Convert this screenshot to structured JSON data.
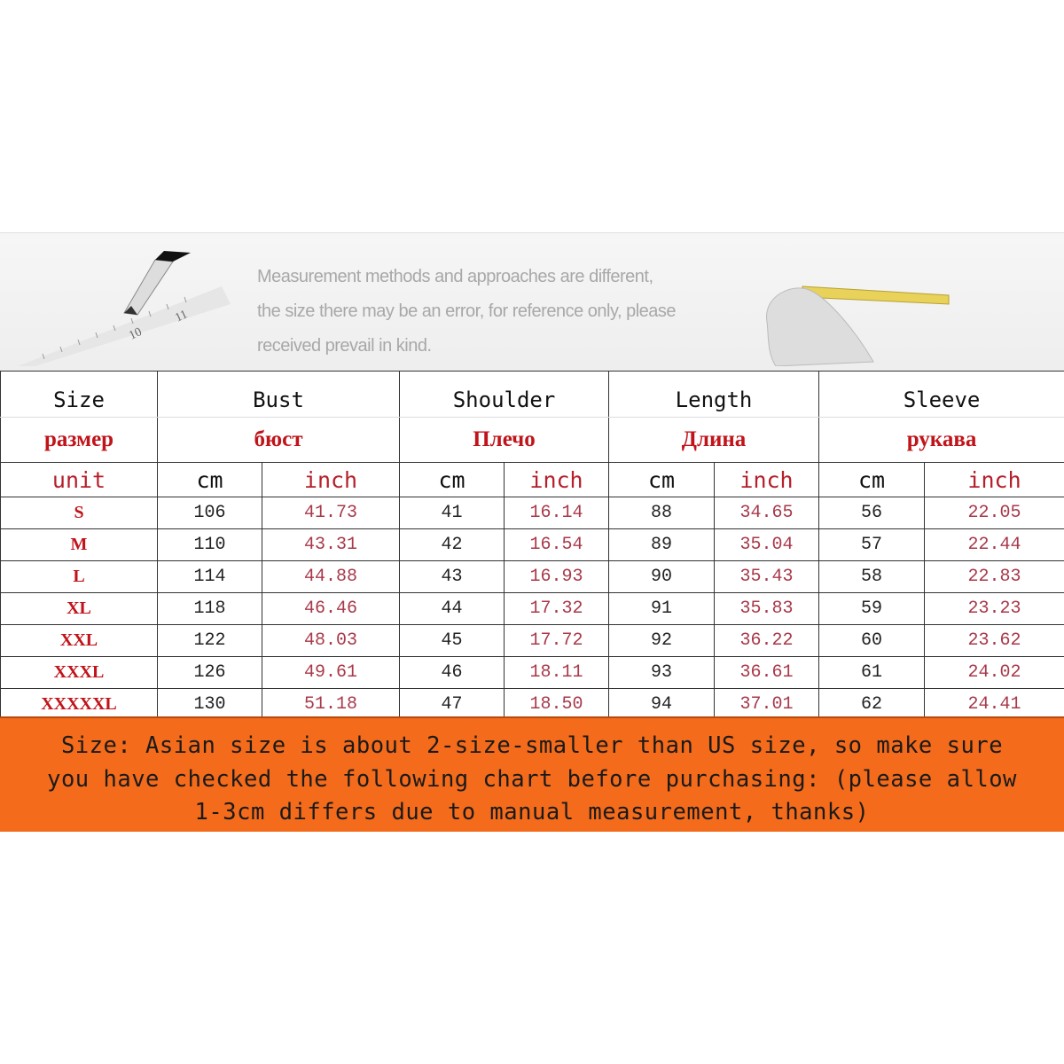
{
  "note": {
    "lines": [
      "Measurement methods and approaches are different,",
      "the size there may be an error, for reference only, please",
      "received prevail in kind."
    ]
  },
  "ruler_marks": [
    "10",
    "11"
  ],
  "table": {
    "headers": [
      {
        "en": "Size",
        "ru": "размер"
      },
      {
        "en": "Bust",
        "ru": "бюст"
      },
      {
        "en": "Shoulder",
        "ru": "Плечо"
      },
      {
        "en": "Length",
        "ru": "Длина"
      },
      {
        "en": "Sleeve",
        "ru": "рукава"
      }
    ],
    "unit_label": "unit",
    "cm_label": "cm",
    "inch_label": "inch",
    "rows": [
      {
        "size": "S",
        "bust_cm": "106",
        "bust_in": "41.73",
        "shoulder_cm": "41",
        "shoulder_in": "16.14",
        "length_cm": "88",
        "length_in": "34.65",
        "sleeve_cm": "56",
        "sleeve_in": "22.05"
      },
      {
        "size": "M",
        "bust_cm": "110",
        "bust_in": "43.31",
        "shoulder_cm": "42",
        "shoulder_in": "16.54",
        "length_cm": "89",
        "length_in": "35.04",
        "sleeve_cm": "57",
        "sleeve_in": "22.44"
      },
      {
        "size": "L",
        "bust_cm": "114",
        "bust_in": "44.88",
        "shoulder_cm": "43",
        "shoulder_in": "16.93",
        "length_cm": "90",
        "length_in": "35.43",
        "sleeve_cm": "58",
        "sleeve_in": "22.83"
      },
      {
        "size": "XL",
        "bust_cm": "118",
        "bust_in": "46.46",
        "shoulder_cm": "44",
        "shoulder_in": "17.32",
        "length_cm": "91",
        "length_in": "35.83",
        "sleeve_cm": "59",
        "sleeve_in": "23.23"
      },
      {
        "size": "XXL",
        "bust_cm": "122",
        "bust_in": "48.03",
        "shoulder_cm": "45",
        "shoulder_in": "17.72",
        "length_cm": "92",
        "length_in": "36.22",
        "sleeve_cm": "60",
        "sleeve_in": "23.62"
      },
      {
        "size": "XXXL",
        "bust_cm": "126",
        "bust_in": "49.61",
        "shoulder_cm": "46",
        "shoulder_in": "18.11",
        "length_cm": "93",
        "length_in": "36.61",
        "sleeve_cm": "61",
        "sleeve_in": "24.02"
      },
      {
        "size": "XXXXXL",
        "bust_cm": "130",
        "bust_in": "51.18",
        "shoulder_cm": "47",
        "shoulder_in": "18.50",
        "length_cm": "94",
        "length_in": "37.01",
        "sleeve_cm": "62",
        "sleeve_in": "24.41"
      }
    ]
  },
  "banner": {
    "lines": [
      "Size: Asian size is about  2-size-smaller than US size, so make sure",
      "you have checked the following chart before purchasing: (please allow",
      "1-3cm differs due to manual measurement, thanks)"
    ],
    "color": "#f36b1b"
  }
}
